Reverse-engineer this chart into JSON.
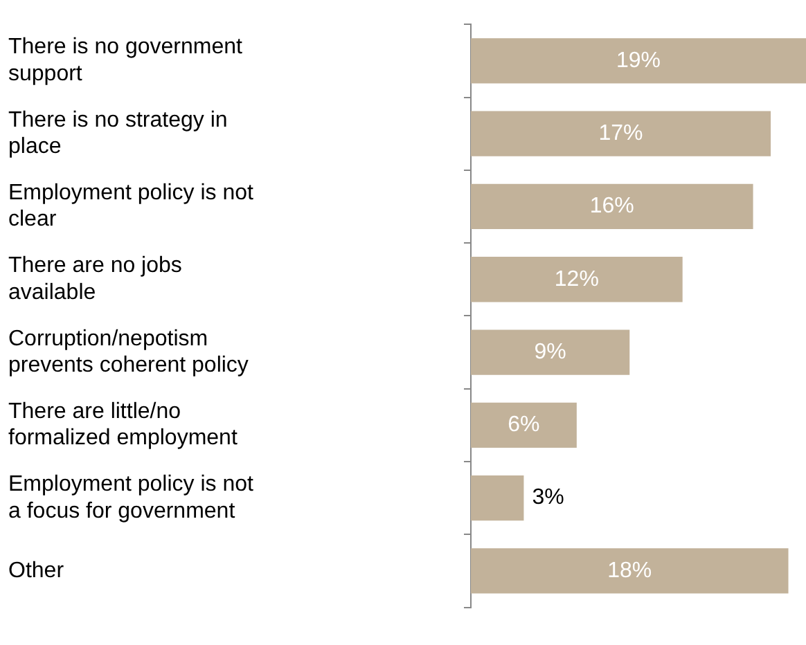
{
  "chart_data": {
    "type": "bar",
    "orientation": "horizontal",
    "categories": [
      "There is no government support",
      "There is no strategy in place",
      "Employment policy is not clear",
      "There are no jobs available",
      "Corruption/nepotism prevents coherent policy",
      "There are little/no formalized employment",
      "Employment policy is not a focus for government",
      "Other"
    ],
    "values": [
      19,
      17,
      16,
      12,
      9,
      6,
      3,
      18
    ],
    "color": "#c2b29a",
    "value_labels": [
      "19%",
      "17%",
      "16%",
      "12%",
      "9%",
      "6%",
      "3%",
      "18%"
    ],
    "tick_labels": "y",
    "grid": false,
    "legend": false
  }
}
